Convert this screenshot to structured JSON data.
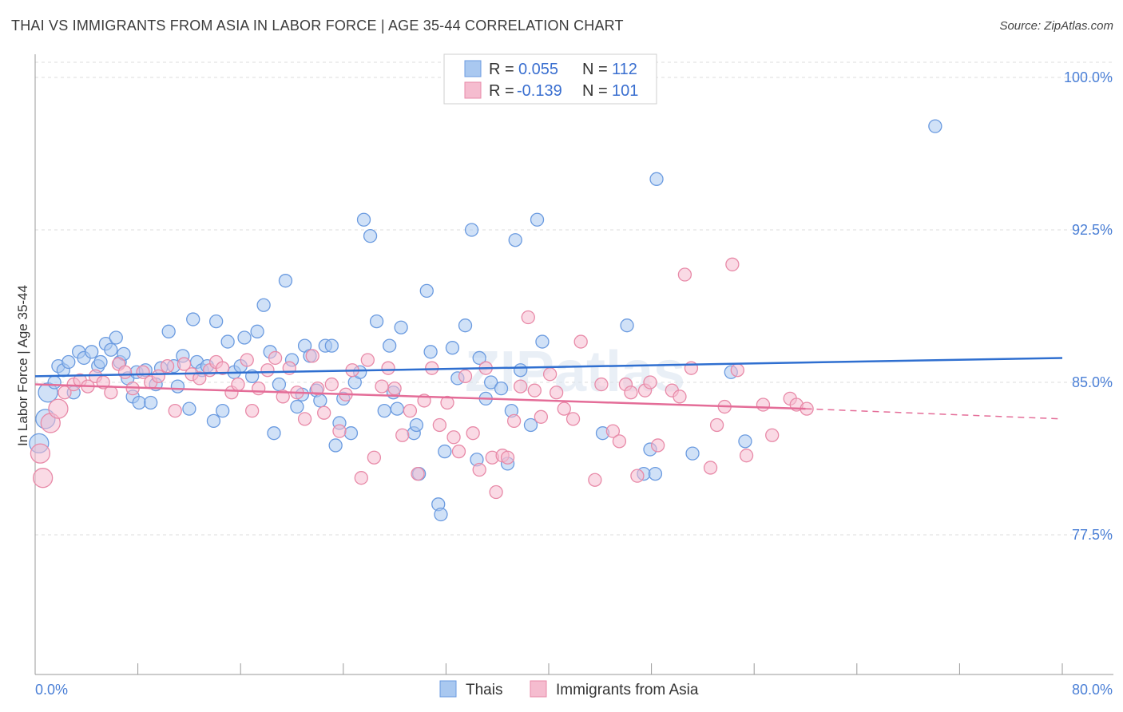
{
  "title": "THAI VS IMMIGRANTS FROM ASIA IN LABOR FORCE | AGE 35-44 CORRELATION CHART",
  "source": "Source: ZipAtlas.com",
  "watermark": "ZIPatlas",
  "colors": {
    "blue_fill": "#a9c8f0",
    "blue_stroke": "#6b9be0",
    "blue_line": "#2f6fd0",
    "pink_fill": "#f5bccf",
    "pink_stroke": "#e88aa8",
    "pink_line": "#e46d98",
    "grid": "#dddddd",
    "tick_text": "#4a7fd6"
  },
  "legend": {
    "r_label": "R =",
    "n_label": "N =",
    "rows": [
      {
        "r": "0.055",
        "n": "112",
        "series": "blue"
      },
      {
        "r": "-0.139",
        "n": "101",
        "series": "pink"
      }
    ]
  },
  "chart_data": {
    "type": "scatter",
    "title": "THAI VS IMMIGRANTS FROM ASIA IN LABOR FORCE | AGE 35-44 CORRELATION CHART",
    "xlabel": "",
    "ylabel": "In Labor Force | Age 35-44",
    "xlim": [
      0,
      80
    ],
    "ylim": [
      70.0,
      101.0
    ],
    "x_tick_labels": [
      "0.0%",
      "80.0%"
    ],
    "y_ticks": [
      77.5,
      85.0,
      92.5,
      100.0
    ],
    "y_tick_labels": [
      "77.5%",
      "85.0%",
      "92.5%",
      "100.0%"
    ],
    "grid": true,
    "legend_position": "top-center",
    "series": [
      {
        "name": "Thais",
        "color": "#6b9be0",
        "trend": {
          "x": [
            0,
            80
          ],
          "y": [
            85.3,
            86.2
          ]
        },
        "points": [
          [
            0.3,
            82.0,
            2
          ],
          [
            0.8,
            83.2,
            2
          ],
          [
            1.0,
            84.5,
            2
          ],
          [
            1.5,
            85.0,
            1
          ],
          [
            1.8,
            85.8,
            1
          ],
          [
            2.2,
            85.6,
            1
          ],
          [
            2.6,
            86.0,
            1
          ],
          [
            3.0,
            84.5,
            1
          ],
          [
            3.4,
            86.5,
            1
          ],
          [
            3.8,
            86.2,
            1
          ],
          [
            4.4,
            86.5,
            1
          ],
          [
            4.9,
            85.8,
            1
          ],
          [
            5.1,
            86.0,
            1
          ],
          [
            5.5,
            86.9,
            1
          ],
          [
            5.9,
            86.6,
            1
          ],
          [
            6.3,
            87.2,
            1
          ],
          [
            6.6,
            86.0,
            1
          ],
          [
            6.9,
            86.4,
            1
          ],
          [
            7.2,
            85.2,
            1
          ],
          [
            7.6,
            84.3,
            1
          ],
          [
            7.9,
            85.5,
            1
          ],
          [
            8.1,
            84.0,
            1
          ],
          [
            8.6,
            85.6,
            1
          ],
          [
            9.0,
            84.0,
            1
          ],
          [
            9.4,
            84.9,
            1
          ],
          [
            9.8,
            85.7,
            1
          ],
          [
            10.4,
            87.5,
            1
          ],
          [
            10.8,
            85.8,
            1
          ],
          [
            11.1,
            84.8,
            1
          ],
          [
            11.5,
            86.3,
            1
          ],
          [
            12.0,
            83.7,
            1
          ],
          [
            12.3,
            88.1,
            1
          ],
          [
            12.6,
            86.0,
            1
          ],
          [
            13.0,
            85.6,
            1
          ],
          [
            13.4,
            85.8,
            1
          ],
          [
            13.9,
            83.1,
            1
          ],
          [
            14.1,
            88.0,
            1
          ],
          [
            14.6,
            83.6,
            1
          ],
          [
            15.0,
            87.0,
            1
          ],
          [
            15.5,
            85.5,
            1
          ],
          [
            16.0,
            85.8,
            1
          ],
          [
            16.3,
            87.2,
            1
          ],
          [
            16.9,
            85.3,
            1
          ],
          [
            17.3,
            87.5,
            1
          ],
          [
            17.8,
            88.8,
            1
          ],
          [
            18.3,
            86.5,
            1
          ],
          [
            18.6,
            82.5,
            1
          ],
          [
            19.0,
            84.9,
            1
          ],
          [
            19.5,
            90.0,
            1
          ],
          [
            20.0,
            86.1,
            1
          ],
          [
            20.4,
            83.8,
            1
          ],
          [
            20.8,
            84.4,
            1
          ],
          [
            21.0,
            86.8,
            1
          ],
          [
            21.4,
            86.3,
            1
          ],
          [
            21.9,
            84.6,
            1
          ],
          [
            22.2,
            84.1,
            1
          ],
          [
            22.6,
            86.8,
            1
          ],
          [
            23.1,
            86.8,
            1
          ],
          [
            23.4,
            81.9,
            1
          ],
          [
            23.7,
            83.0,
            1
          ],
          [
            24.0,
            84.2,
            1
          ],
          [
            24.6,
            82.5,
            1
          ],
          [
            24.9,
            85.0,
            1
          ],
          [
            25.3,
            85.5,
            1
          ],
          [
            25.6,
            93.0,
            1
          ],
          [
            26.1,
            92.2,
            1
          ],
          [
            26.6,
            88.0,
            1
          ],
          [
            27.2,
            83.6,
            1
          ],
          [
            27.6,
            86.8,
            1
          ],
          [
            27.9,
            84.5,
            1
          ],
          [
            28.2,
            83.7,
            1
          ],
          [
            28.5,
            87.7,
            1
          ],
          [
            29.5,
            82.5,
            1
          ],
          [
            29.9,
            80.5,
            1
          ],
          [
            29.7,
            82.9,
            1
          ],
          [
            30.5,
            89.5,
            1
          ],
          [
            30.8,
            86.5,
            1
          ],
          [
            31.4,
            79.0,
            1
          ],
          [
            31.6,
            78.5,
            1
          ],
          [
            31.9,
            81.6,
            1
          ],
          [
            32.5,
            86.7,
            1
          ],
          [
            32.9,
            85.2,
            1
          ],
          [
            33.5,
            87.8,
            1
          ],
          [
            34.0,
            92.5,
            1
          ],
          [
            34.4,
            81.2,
            1
          ],
          [
            34.6,
            86.2,
            1
          ],
          [
            35.1,
            84.2,
            1
          ],
          [
            35.5,
            85.0,
            1
          ],
          [
            36.3,
            84.7,
            1
          ],
          [
            36.8,
            81.0,
            1
          ],
          [
            37.1,
            83.6,
            1
          ],
          [
            37.4,
            92.0,
            1
          ],
          [
            37.8,
            85.6,
            1
          ],
          [
            38.6,
            82.9,
            1
          ],
          [
            39.1,
            93.0,
            1
          ],
          [
            39.5,
            87.0,
            1
          ],
          [
            44.2,
            82.5,
            1
          ],
          [
            46.1,
            87.8,
            1
          ],
          [
            47.4,
            80.5,
            1
          ],
          [
            47.9,
            81.7,
            1
          ],
          [
            48.3,
            80.5,
            1
          ],
          [
            48.4,
            95.0,
            1
          ],
          [
            51.2,
            81.5,
            1
          ],
          [
            54.2,
            85.5,
            1
          ],
          [
            55.3,
            82.1,
            1
          ],
          [
            70.1,
            97.6,
            1
          ]
        ]
      },
      {
        "name": "Immigrants from Asia",
        "color": "#e88aa8",
        "trend": {
          "x": [
            0,
            60
          ],
          "y": [
            84.9,
            83.7
          ]
        },
        "trend_dashed": {
          "x": [
            60,
            80
          ],
          "y": [
            83.7,
            83.2
          ]
        },
        "points": [
          [
            0.4,
            81.5,
            2
          ],
          [
            0.6,
            80.3,
            2
          ],
          [
            1.2,
            83.0,
            2
          ],
          [
            1.8,
            83.7,
            2
          ],
          [
            2.3,
            84.5,
            1
          ],
          [
            3.0,
            84.9,
            1
          ],
          [
            3.5,
            85.1,
            1
          ],
          [
            4.1,
            84.8,
            1
          ],
          [
            4.7,
            85.3,
            1
          ],
          [
            5.3,
            85.0,
            1
          ],
          [
            5.9,
            84.5,
            1
          ],
          [
            6.5,
            85.9,
            1
          ],
          [
            7.0,
            85.5,
            1
          ],
          [
            7.6,
            84.7,
            1
          ],
          [
            8.4,
            85.5,
            1
          ],
          [
            9.0,
            85.0,
            1
          ],
          [
            9.6,
            85.3,
            1
          ],
          [
            10.3,
            85.8,
            1
          ],
          [
            10.9,
            83.6,
            1
          ],
          [
            11.6,
            85.9,
            1
          ],
          [
            12.2,
            85.4,
            1
          ],
          [
            12.8,
            85.2,
            1
          ],
          [
            13.6,
            85.6,
            1
          ],
          [
            14.1,
            86.0,
            1
          ],
          [
            14.6,
            85.7,
            1
          ],
          [
            15.3,
            84.5,
            1
          ],
          [
            15.8,
            84.9,
            1
          ],
          [
            16.5,
            86.1,
            1
          ],
          [
            16.9,
            83.6,
            1
          ],
          [
            17.4,
            84.7,
            1
          ],
          [
            18.1,
            85.6,
            1
          ],
          [
            18.7,
            86.2,
            1
          ],
          [
            19.3,
            84.3,
            1
          ],
          [
            19.8,
            85.7,
            1
          ],
          [
            20.4,
            84.5,
            1
          ],
          [
            21.0,
            83.2,
            1
          ],
          [
            21.6,
            86.3,
            1
          ],
          [
            22.0,
            84.7,
            1
          ],
          [
            22.5,
            83.5,
            1
          ],
          [
            23.1,
            84.9,
            1
          ],
          [
            23.7,
            82.6,
            1
          ],
          [
            24.2,
            84.4,
            1
          ],
          [
            24.7,
            85.6,
            1
          ],
          [
            25.4,
            80.3,
            1
          ],
          [
            25.9,
            86.1,
            1
          ],
          [
            26.4,
            81.3,
            1
          ],
          [
            27.0,
            84.8,
            1
          ],
          [
            27.5,
            85.7,
            1
          ],
          [
            28.0,
            84.7,
            1
          ],
          [
            28.6,
            82.4,
            1
          ],
          [
            29.2,
            83.6,
            1
          ],
          [
            29.8,
            80.5,
            1
          ],
          [
            30.3,
            84.1,
            1
          ],
          [
            30.9,
            85.7,
            1
          ],
          [
            31.5,
            82.9,
            1
          ],
          [
            32.1,
            84.0,
            1
          ],
          [
            32.6,
            82.3,
            1
          ],
          [
            33.0,
            81.6,
            1
          ],
          [
            33.5,
            85.3,
            1
          ],
          [
            34.1,
            82.5,
            1
          ],
          [
            34.6,
            80.7,
            1
          ],
          [
            35.1,
            85.7,
            1
          ],
          [
            35.6,
            81.3,
            1
          ],
          [
            35.9,
            79.6,
            1
          ],
          [
            36.4,
            81.4,
            1
          ],
          [
            36.8,
            81.3,
            1
          ],
          [
            37.3,
            83.1,
            1
          ],
          [
            37.8,
            84.8,
            1
          ],
          [
            38.4,
            88.2,
            1
          ],
          [
            38.9,
            84.6,
            1
          ],
          [
            39.4,
            83.3,
            1
          ],
          [
            40.1,
            85.4,
            1
          ],
          [
            40.6,
            84.5,
            1
          ],
          [
            41.2,
            83.7,
            1
          ],
          [
            41.9,
            83.2,
            1
          ],
          [
            42.5,
            87.0,
            1
          ],
          [
            43.6,
            80.2,
            1
          ],
          [
            44.1,
            84.9,
            1
          ],
          [
            45.0,
            82.6,
            1
          ],
          [
            45.5,
            82.1,
            1
          ],
          [
            46.0,
            84.9,
            1
          ],
          [
            46.4,
            84.5,
            1
          ],
          [
            46.9,
            80.4,
            1
          ],
          [
            47.5,
            84.6,
            1
          ],
          [
            47.9,
            85.0,
            1
          ],
          [
            48.5,
            81.9,
            1
          ],
          [
            49.6,
            84.6,
            1
          ],
          [
            50.2,
            84.3,
            1
          ],
          [
            50.6,
            90.3,
            1
          ],
          [
            51.1,
            85.7,
            1
          ],
          [
            52.6,
            80.8,
            1
          ],
          [
            53.1,
            82.9,
            1
          ],
          [
            53.7,
            83.8,
            1
          ],
          [
            54.3,
            90.8,
            1
          ],
          [
            54.7,
            85.6,
            1
          ],
          [
            55.4,
            81.4,
            1
          ],
          [
            56.7,
            83.9,
            1
          ],
          [
            57.4,
            82.4,
            1
          ],
          [
            58.8,
            84.2,
            1
          ],
          [
            59.3,
            83.9,
            1
          ],
          [
            60.1,
            83.7,
            1
          ]
        ]
      }
    ]
  },
  "bottom_legend": [
    {
      "label": "Thais",
      "series": "blue"
    },
    {
      "label": "Immigrants from Asia",
      "series": "pink"
    }
  ]
}
